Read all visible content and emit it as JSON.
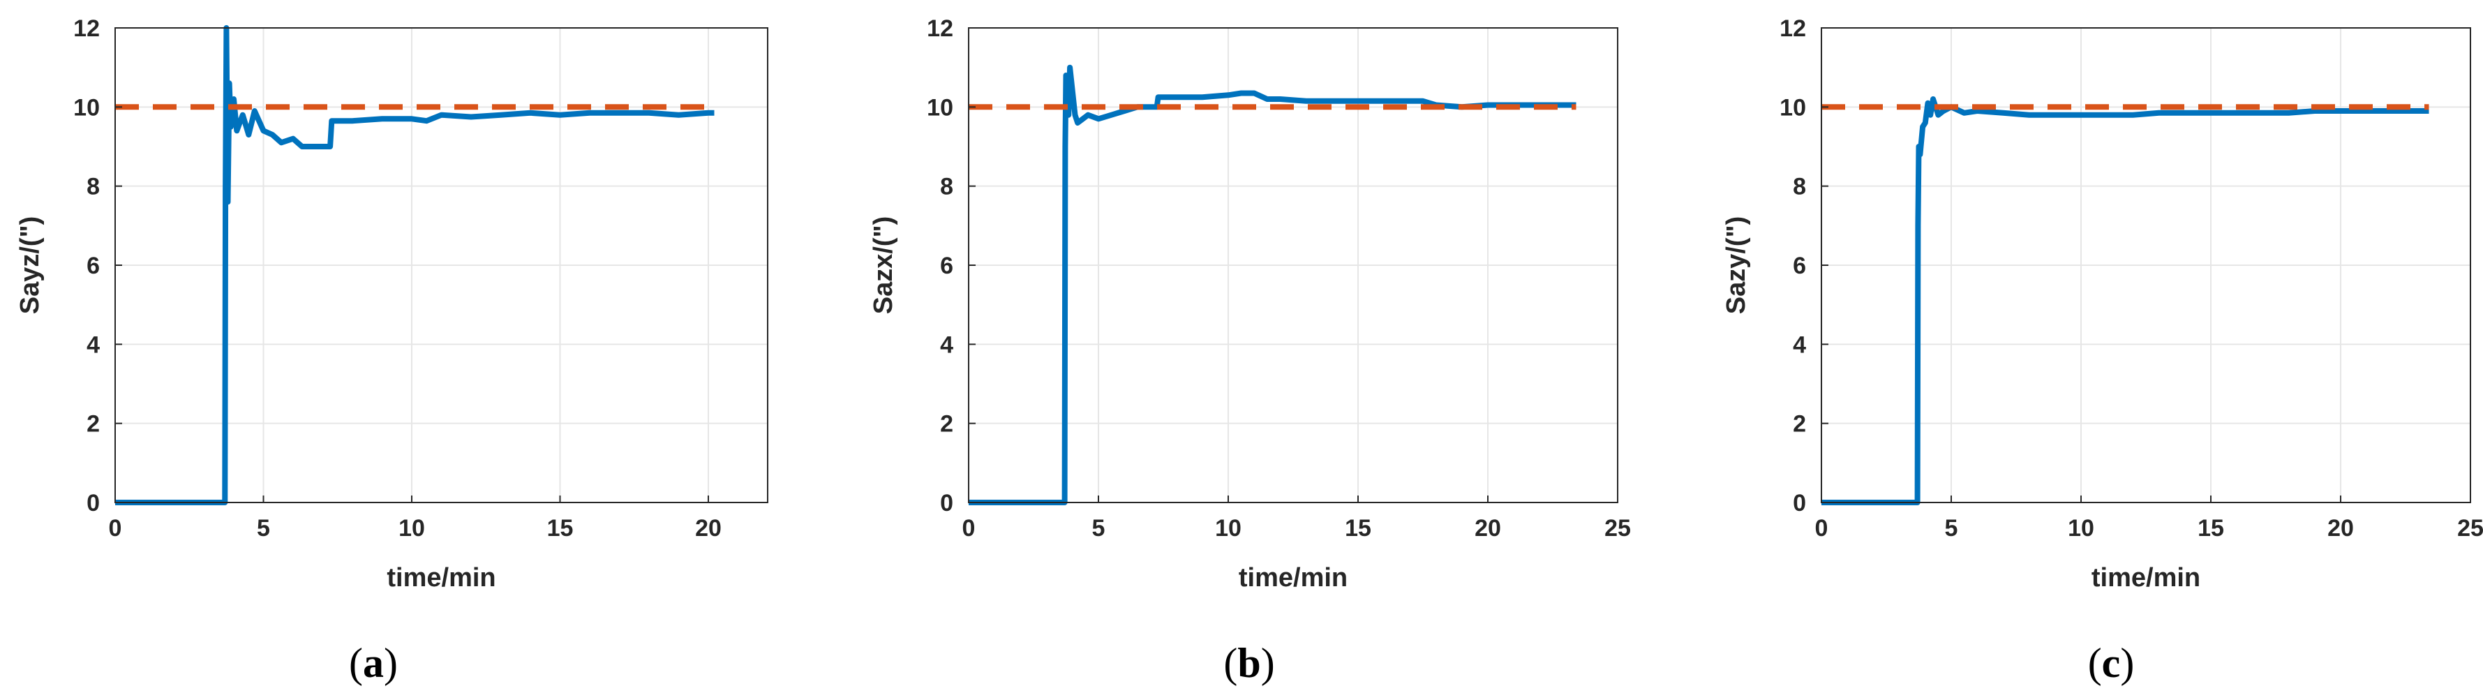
{
  "chart_data": [
    {
      "type": "line",
      "panel_label": "(a)",
      "ylabel": "Sayz/(\")",
      "xlabel": "time/min",
      "xlim": [
        0,
        22
      ],
      "ylim": [
        0,
        12
      ],
      "xticks": [
        0,
        5,
        10,
        15,
        20
      ],
      "yticks": [
        0,
        2,
        4,
        6,
        8,
        10,
        12
      ],
      "grid": true,
      "series": [
        {
          "style": "solid",
          "color": "#0072BD",
          "x": [
            0,
            3.7,
            3.72,
            3.75,
            3.8,
            3.85,
            3.9,
            4.0,
            4.1,
            4.2,
            4.3,
            4.5,
            4.7,
            5.0,
            5.3,
            5.6,
            6.0,
            6.3,
            6.6,
            7.0,
            7.25,
            7.3,
            8.0,
            9.0,
            10.0,
            10.5,
            11.0,
            12.0,
            13.0,
            14.0,
            15.0,
            16.0,
            17.0,
            18.0,
            19.0,
            20.0,
            20.2
          ],
          "y": [
            0,
            0,
            8,
            12,
            7.6,
            10.6,
            9.5,
            10.2,
            9.4,
            9.6,
            9.8,
            9.3,
            9.9,
            9.4,
            9.3,
            9.1,
            9.2,
            9.0,
            9.0,
            9.0,
            9.0,
            9.65,
            9.65,
            9.7,
            9.7,
            9.65,
            9.8,
            9.75,
            9.8,
            9.85,
            9.8,
            9.85,
            9.85,
            9.85,
            9.8,
            9.85,
            9.85
          ]
        },
        {
          "style": "dashed",
          "color": "#D95319",
          "x": [
            0,
            20.2
          ],
          "y": [
            10,
            10
          ]
        }
      ]
    },
    {
      "type": "line",
      "panel_label": "(b)",
      "ylabel": "Sazx/(\")",
      "xlabel": "time/min",
      "xlim": [
        0,
        25
      ],
      "ylim": [
        0,
        12
      ],
      "xticks": [
        0,
        5,
        10,
        15,
        20,
        25
      ],
      "yticks": [
        0,
        2,
        4,
        6,
        8,
        10,
        12
      ],
      "grid": true,
      "series": [
        {
          "style": "solid",
          "color": "#0072BD",
          "x": [
            0,
            3.7,
            3.72,
            3.75,
            3.85,
            3.9,
            4.0,
            4.1,
            4.2,
            4.4,
            4.6,
            5.0,
            5.5,
            6.0,
            6.5,
            7.0,
            7.25,
            7.3,
            8.0,
            9.0,
            10.0,
            10.5,
            11.0,
            11.5,
            12.0,
            13.0,
            14.0,
            15.0,
            16.0,
            17.5,
            18.0,
            19.0,
            20.0,
            21.0,
            22.0,
            23.0,
            23.4
          ],
          "y": [
            0,
            0,
            9.0,
            10.8,
            9.8,
            11.0,
            10.4,
            9.8,
            9.6,
            9.7,
            9.8,
            9.7,
            9.8,
            9.9,
            10.0,
            10.0,
            10.0,
            10.25,
            10.25,
            10.25,
            10.3,
            10.35,
            10.35,
            10.2,
            10.2,
            10.15,
            10.15,
            10.15,
            10.15,
            10.15,
            10.05,
            10.0,
            10.05,
            10.05,
            10.05,
            10.05,
            10.05
          ]
        },
        {
          "style": "dashed",
          "color": "#D95319",
          "x": [
            0,
            23.4
          ],
          "y": [
            10,
            10
          ]
        }
      ]
    },
    {
      "type": "line",
      "panel_label": "(c)",
      "ylabel": "Sazy/(\")",
      "xlabel": "time/min",
      "xlim": [
        0,
        25
      ],
      "ylim": [
        0,
        12
      ],
      "xticks": [
        0,
        5,
        10,
        15,
        20,
        25
      ],
      "yticks": [
        0,
        2,
        4,
        6,
        8,
        10,
        12
      ],
      "grid": true,
      "series": [
        {
          "style": "solid",
          "color": "#0072BD",
          "x": [
            0,
            3.7,
            3.72,
            3.75,
            3.8,
            3.9,
            4.0,
            4.1,
            4.2,
            4.3,
            4.5,
            4.7,
            5.0,
            5.5,
            6.0,
            7.0,
            8.0,
            9.0,
            10.0,
            11.0,
            12.0,
            13.0,
            14.0,
            15.0,
            16.0,
            17.0,
            18.0,
            19.0,
            20.0,
            21.0,
            22.0,
            23.0,
            23.4
          ],
          "y": [
            0,
            0,
            7.0,
            9.0,
            8.8,
            9.5,
            9.6,
            10.1,
            9.8,
            10.2,
            9.8,
            9.9,
            10.0,
            9.85,
            9.9,
            9.85,
            9.8,
            9.8,
            9.8,
            9.8,
            9.8,
            9.85,
            9.85,
            9.85,
            9.85,
            9.85,
            9.85,
            9.9,
            9.9,
            9.9,
            9.9,
            9.9,
            9.9
          ]
        },
        {
          "style": "dashed",
          "color": "#D95319",
          "x": [
            0,
            23.4
          ],
          "y": [
            10,
            10
          ]
        }
      ]
    }
  ]
}
